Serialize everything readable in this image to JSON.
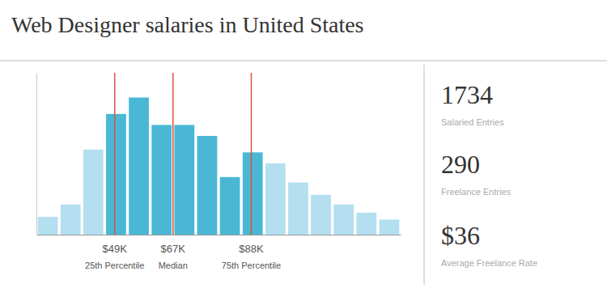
{
  "chart_data": {
    "type": "bar",
    "title": "Web Designer salaries in United States",
    "categories": [
      null,
      null,
      null,
      null,
      null,
      null,
      null,
      null,
      null,
      null,
      null,
      null,
      null,
      null,
      null,
      null
    ],
    "values": [
      0.13,
      0.22,
      0.62,
      0.88,
      1.0,
      0.8,
      0.8,
      0.72,
      0.42,
      0.6,
      0.52,
      0.38,
      0.29,
      0.22,
      0.16,
      0.11
    ],
    "colors": [
      "#b3dff0",
      "#b3dff0",
      "#b3dff0",
      "#4ab8d5",
      "#4ab8d5",
      "#4ab8d5",
      "#4ab8d5",
      "#4ab8d5",
      "#4ab8d5",
      "#4ab8d5",
      "#b3dff0",
      "#b3dff0",
      "#b3dff0",
      "#b3dff0",
      "#b3dff0",
      "#b3dff0"
    ],
    "ylim": [
      0,
      1.18
    ],
    "tick_labels": false,
    "grid": false,
    "annotations": [
      {
        "text": "$49K",
        "label": "25th Percentile",
        "x": 2.94,
        "color": "#e05040"
      },
      {
        "text": "$67K",
        "label": "Median",
        "x": 5.5,
        "color": "#e05040"
      },
      {
        "text": "$88K",
        "label": "75th Percentile",
        "x": 8.94,
        "color": "#e05040"
      },
      {
        "text": "1734",
        "label": "Salaried Entries"
      },
      {
        "text": "290",
        "label": "Freelance Entries"
      },
      {
        "text": "$36",
        "label": "Average Freelance Rate"
      }
    ]
  }
}
